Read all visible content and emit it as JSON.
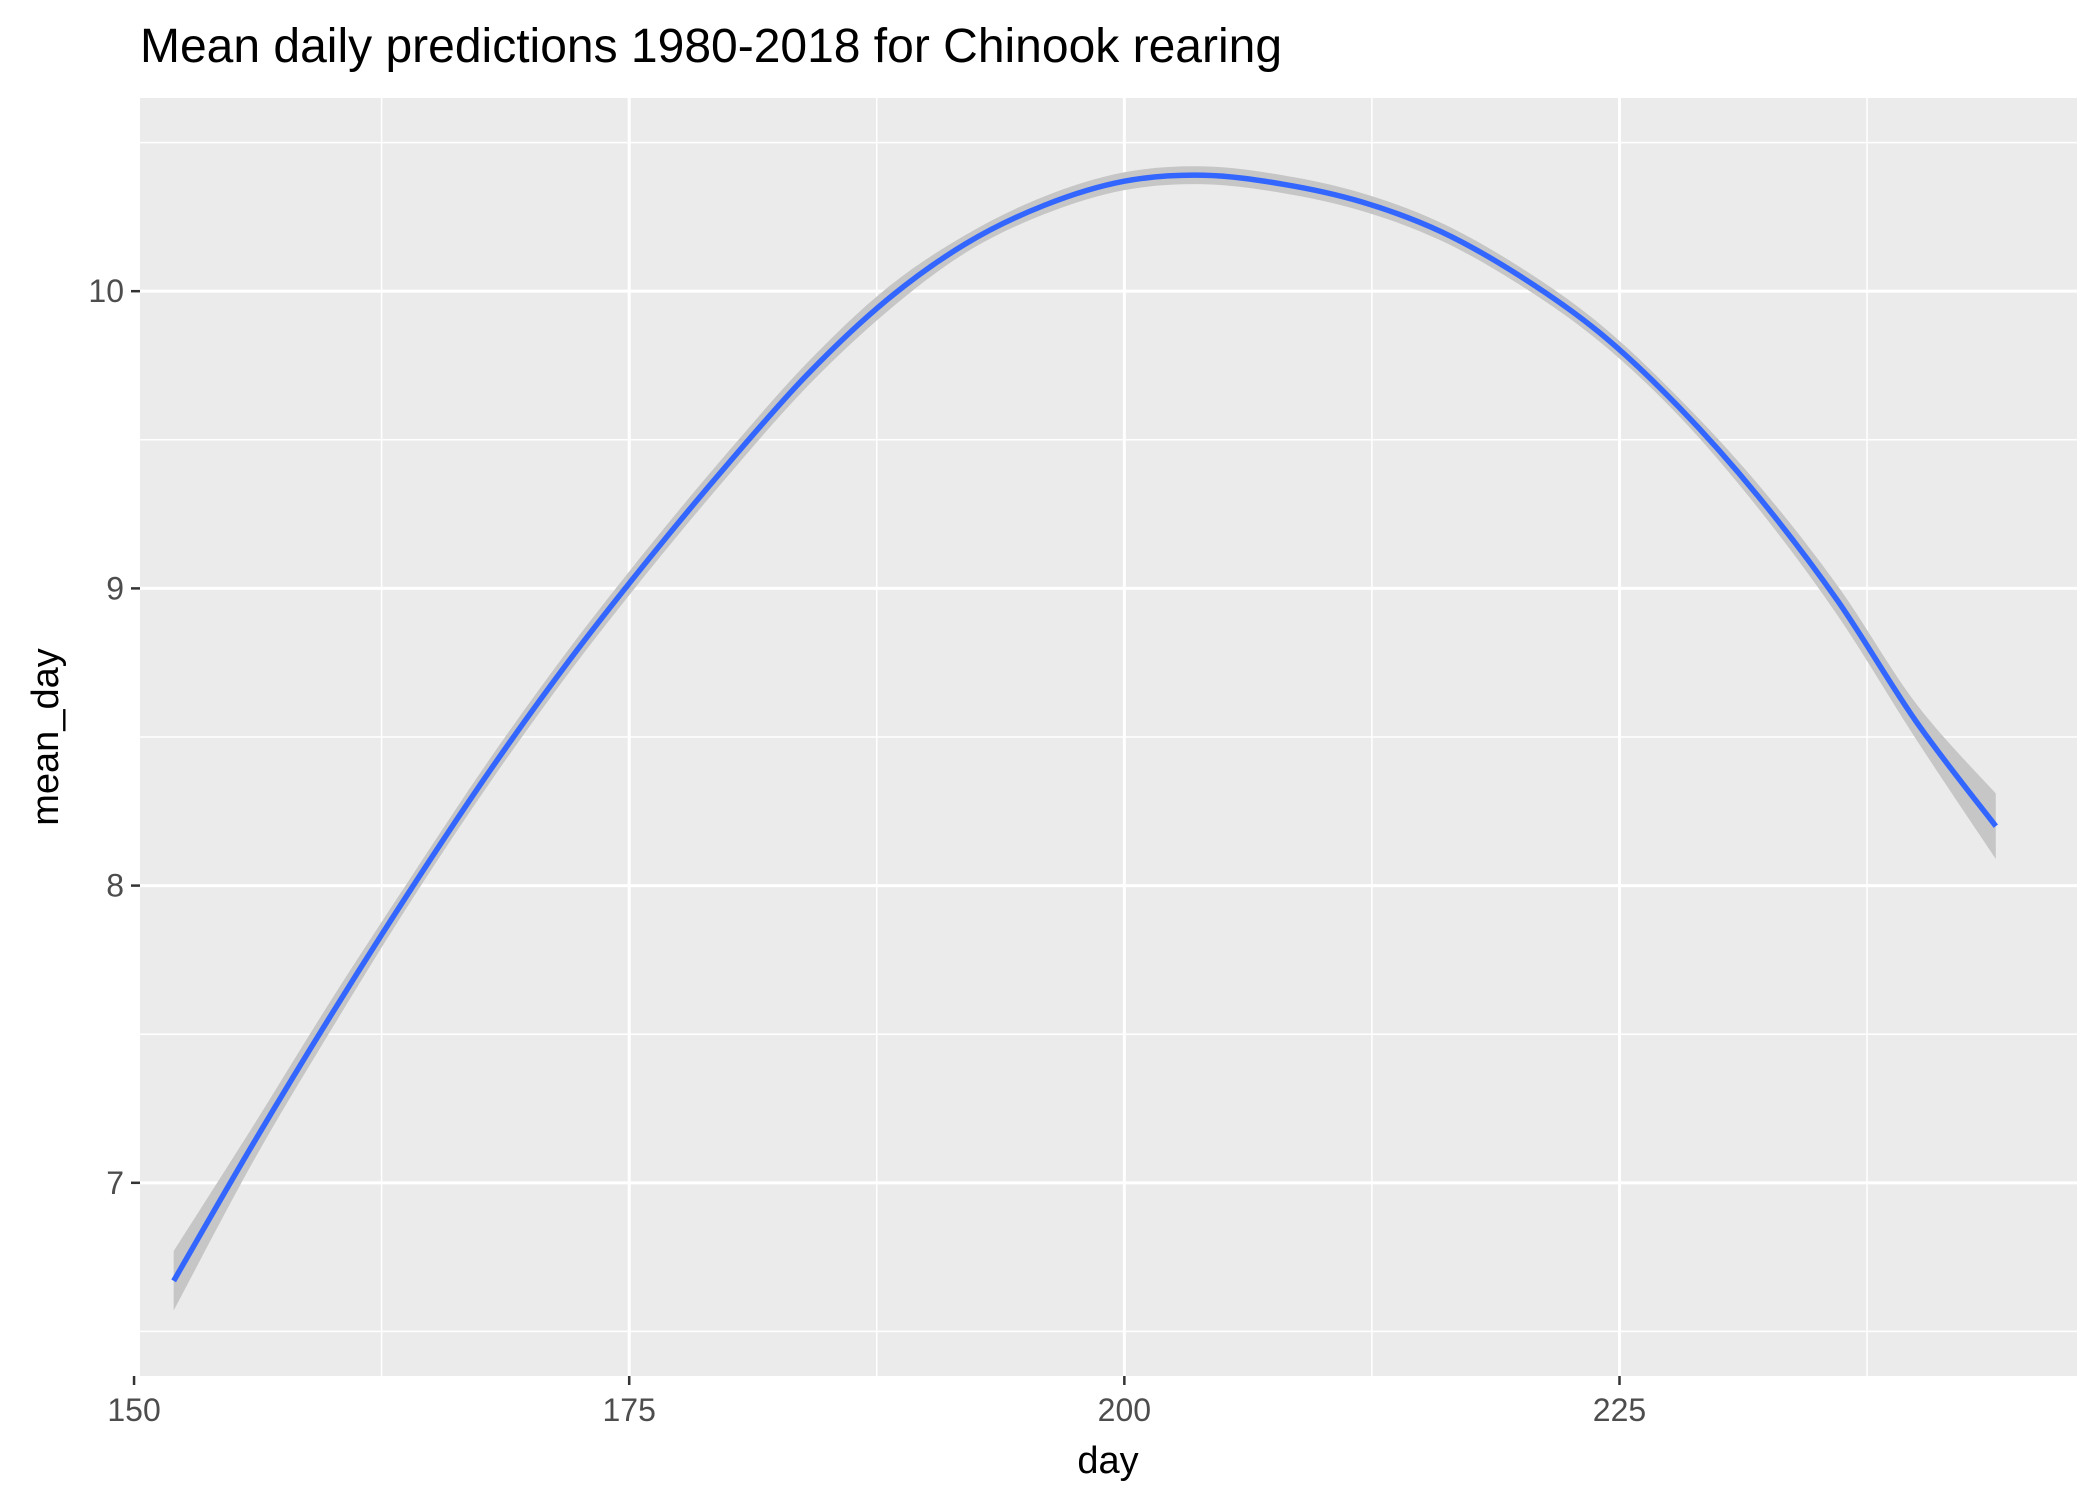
{
  "chart_data": {
    "type": "line",
    "title": "Mean daily predictions 1980-2018 for Chinook rearing",
    "xlabel": "day",
    "ylabel": "mean_day",
    "xlim": [
      150.3,
      248.1
    ],
    "ylim": [
      6.35,
      10.65
    ],
    "x_ticks": [
      150,
      175,
      200,
      225
    ],
    "x_tick_labels": [
      "150",
      "175",
      "200",
      "225"
    ],
    "y_ticks": [
      7,
      8,
      9,
      10
    ],
    "y_tick_labels": [
      "7",
      "8",
      "9",
      "10"
    ],
    "grid": true,
    "panel_background": "#ebebeb",
    "gridline_color": "#ffffff",
    "series": [
      {
        "color": "#3366ff",
        "ribbon_color": "#c6c6c6",
        "x": [
          152,
          156,
          160,
          164,
          168,
          172,
          176,
          180,
          184,
          188,
          192,
          196,
          200,
          204,
          208,
          212,
          216,
          220,
          224,
          228,
          232,
          236,
          240,
          244
        ],
        "y": [
          6.67,
          7.13,
          7.57,
          7.99,
          8.39,
          8.76,
          9.1,
          9.42,
          9.72,
          9.97,
          10.16,
          10.29,
          10.37,
          10.39,
          10.36,
          10.3,
          10.2,
          10.05,
          9.86,
          9.61,
          9.31,
          8.96,
          8.55,
          8.2
        ],
        "ci_low": [
          6.57,
          7.07,
          7.52,
          7.95,
          8.35,
          8.72,
          9.06,
          9.38,
          9.68,
          9.93,
          10.13,
          10.26,
          10.34,
          10.36,
          10.33,
          10.27,
          10.17,
          10.02,
          9.83,
          9.58,
          9.27,
          8.91,
          8.49,
          8.09
        ],
        "ci_high": [
          6.77,
          7.19,
          7.62,
          8.03,
          8.43,
          8.8,
          9.14,
          9.46,
          9.76,
          10.01,
          10.19,
          10.32,
          10.4,
          10.42,
          10.39,
          10.33,
          10.23,
          10.08,
          9.89,
          9.64,
          9.35,
          9.01,
          8.61,
          8.31
        ]
      }
    ]
  }
}
